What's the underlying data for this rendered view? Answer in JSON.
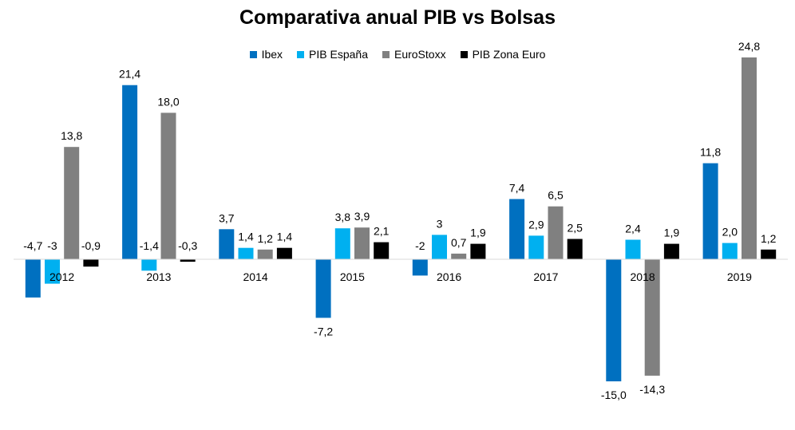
{
  "chart_data": {
    "type": "bar",
    "title": "Comparativa anual PIB vs Bolsas",
    "legend_position": "top",
    "grid": false,
    "ylim": [
      -17,
      26
    ],
    "categories": [
      "2012",
      "2013",
      "2014",
      "2015",
      "2016",
      "2017",
      "2018",
      "2019"
    ],
    "series": [
      {
        "name": "Ibex",
        "color": "#0070C0",
        "values": [
          -4.7,
          21.4,
          3.7,
          -7.2,
          -2,
          7.4,
          -15.0,
          11.8
        ],
        "labels": [
          "-4,7",
          "21,4",
          "3,7",
          "-7,2",
          "-2",
          "7,4",
          "-15,0",
          "11,8"
        ]
      },
      {
        "name": "PIB España",
        "color": "#00B0F0",
        "values": [
          -3,
          -1.4,
          1.4,
          3.8,
          3,
          2.9,
          2.4,
          2.0
        ],
        "labels": [
          "-3",
          "-1,4",
          "1,4",
          "3,8",
          "3",
          "2,9",
          "2,4",
          "2,0"
        ]
      },
      {
        "name": "EuroStoxx",
        "color": "#808080",
        "values": [
          13.8,
          18.0,
          1.2,
          3.9,
          0.7,
          6.5,
          -14.3,
          24.8
        ],
        "labels": [
          "13,8",
          "18,0",
          "1,2",
          "3,9",
          "0,7",
          "6,5",
          "-14,3",
          "24,8"
        ]
      },
      {
        "name": "PIB Zona Euro",
        "color": "#000000",
        "values": [
          -0.9,
          -0.3,
          1.4,
          2.1,
          1.9,
          2.5,
          1.9,
          1.2
        ],
        "labels": [
          "-0,9",
          "-0,3",
          "1,4",
          "2,1",
          "1,9",
          "2,5",
          "1,9",
          "1,2"
        ]
      }
    ]
  }
}
